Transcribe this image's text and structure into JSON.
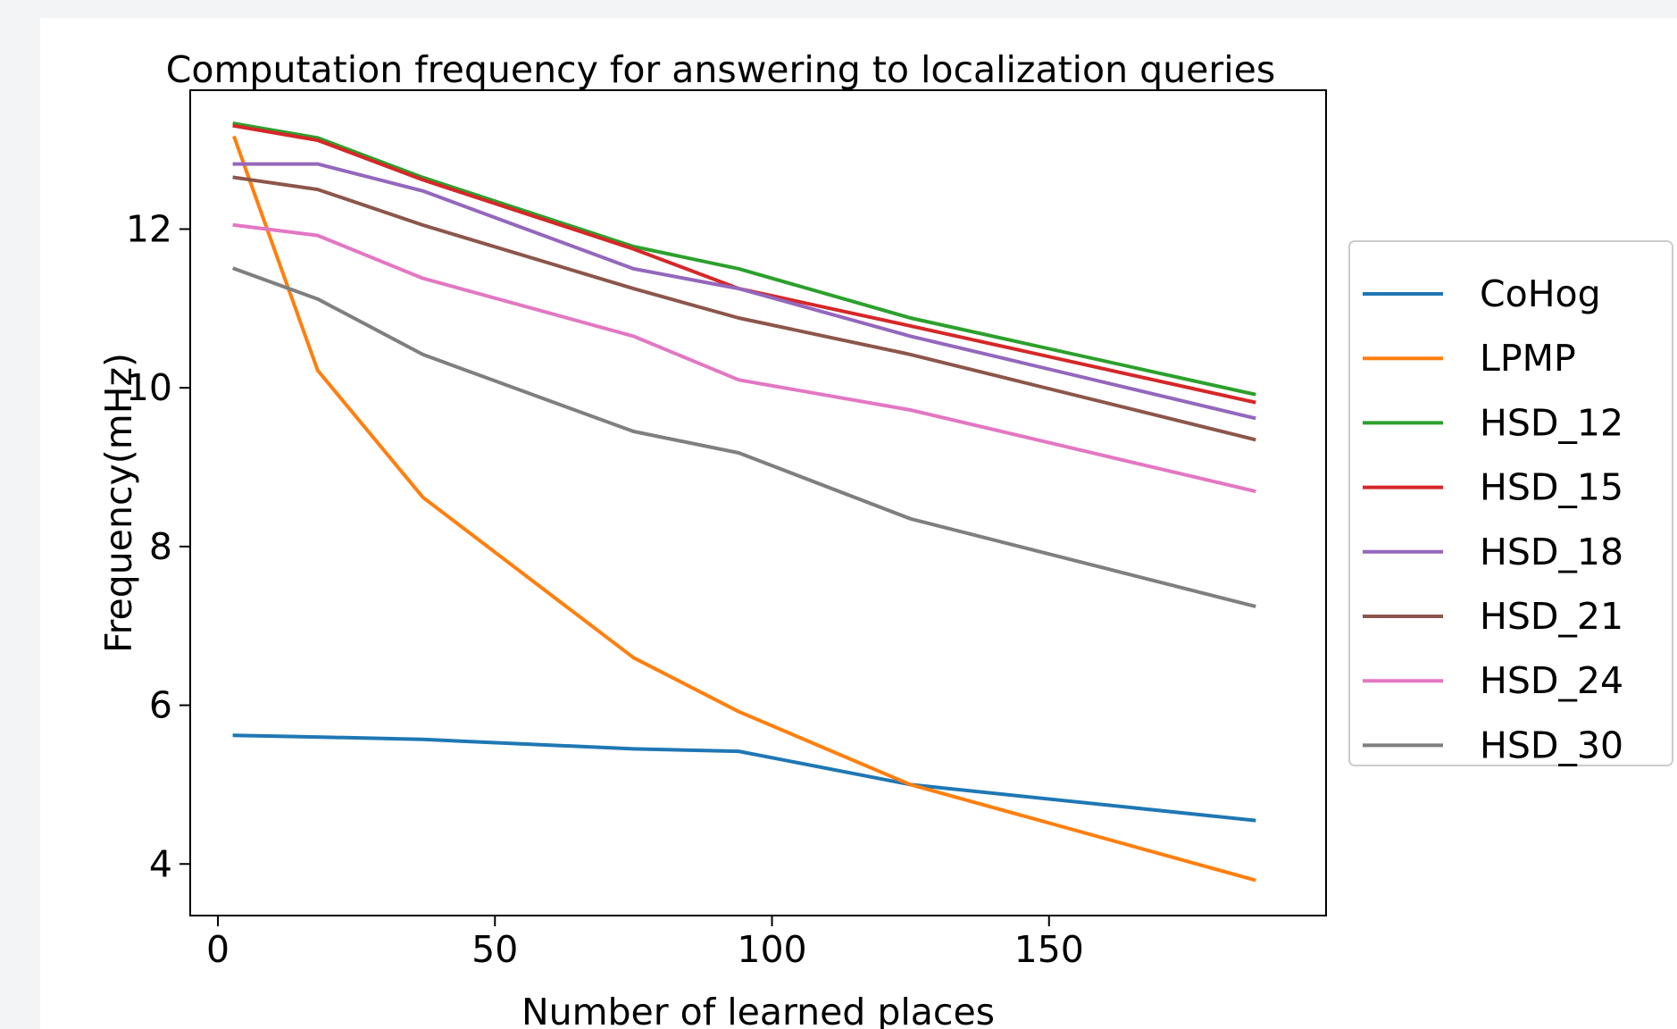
{
  "chart_data": {
    "type": "line",
    "title": "Computation frequency for answering to localization queries",
    "xlabel": "Number of learned places",
    "ylabel": "Frequency(mHz)",
    "xlim": [
      -5,
      200
    ],
    "ylim": [
      3.35,
      13.75
    ],
    "xticks": [
      0,
      50,
      100,
      150
    ],
    "yticks": [
      4,
      6,
      8,
      10,
      12
    ],
    "grid": false,
    "legend_position": "outside-right",
    "x": [
      3,
      18,
      37,
      75,
      94,
      125,
      187
    ],
    "series": [
      {
        "name": "CoHog",
        "color": "#1f77b4",
        "values": [
          5.62,
          5.6,
          5.57,
          5.45,
          5.42,
          5.0,
          4.55
        ]
      },
      {
        "name": "LPMP",
        "color": "#ff7f0e",
        "values": [
          13.15,
          10.22,
          8.62,
          6.6,
          5.92,
          5.0,
          3.8
        ]
      },
      {
        "name": "HSD_12",
        "color": "#2ca02c",
        "values": [
          13.33,
          13.15,
          12.65,
          11.78,
          11.5,
          10.88,
          9.92
        ]
      },
      {
        "name": "HSD_15",
        "color": "#d62728",
        "values": [
          13.3,
          13.12,
          12.62,
          11.75,
          11.25,
          10.78,
          9.82
        ]
      },
      {
        "name": "HSD_18",
        "color": "#9467bd",
        "values": [
          12.82,
          12.82,
          12.48,
          11.5,
          11.25,
          10.65,
          9.62
        ]
      },
      {
        "name": "HSD_21",
        "color": "#8c564b",
        "values": [
          12.65,
          12.5,
          12.05,
          11.25,
          10.88,
          10.42,
          9.35
        ]
      },
      {
        "name": "HSD_24",
        "color": "#e377c2",
        "values": [
          12.05,
          11.92,
          11.38,
          10.65,
          10.1,
          9.72,
          8.7
        ]
      },
      {
        "name": "HSD_30",
        "color": "#7f7f7f",
        "values": [
          11.5,
          11.12,
          10.42,
          9.45,
          9.18,
          8.35,
          7.25
        ]
      }
    ]
  }
}
